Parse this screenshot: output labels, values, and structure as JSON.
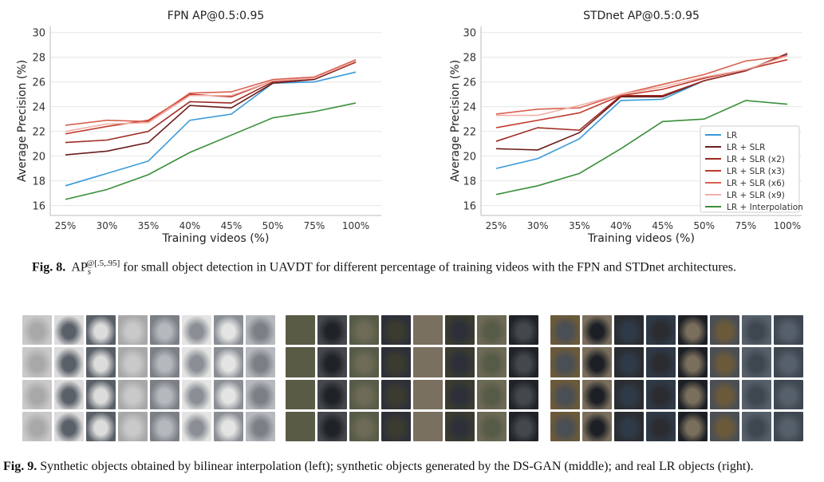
{
  "figure8": {
    "caption_label": "Fig. 8.",
    "caption_ap": "AP",
    "caption_sub": "s",
    "caption_sup": "@[.5,.95]",
    "caption_text": " for small object detection in UAVDT for different percentage of training videos with the FPN and STDnet architectures."
  },
  "chart_data": [
    {
      "type": "line",
      "title": "FPN AP@0.5:0.95",
      "xlabel": "Training videos (%)",
      "ylabel": "Average Precision (%)",
      "categories": [
        "25%",
        "30%",
        "35%",
        "40%",
        "45%",
        "50%",
        "75%",
        "100%"
      ],
      "yticks": [
        16,
        18,
        20,
        22,
        24,
        26,
        28,
        30
      ],
      "ylim": [
        15.2,
        30.5
      ],
      "grid": true,
      "legend": "none",
      "series": [
        {
          "name": "LR",
          "color": "#3a9ad9",
          "values": [
            17.6,
            18.6,
            19.6,
            22.9,
            23.4,
            25.9,
            26.0,
            26.8
          ]
        },
        {
          "name": "LR + SLR",
          "color": "#6b1c1c",
          "values": [
            20.1,
            20.4,
            21.1,
            24.1,
            23.9,
            25.9,
            26.2,
            27.6
          ]
        },
        {
          "name": "LR + SLR (x2)",
          "color": "#9e2a22",
          "values": [
            21.1,
            21.3,
            22.0,
            24.4,
            24.3,
            26.0,
            26.3,
            27.6
          ]
        },
        {
          "name": "LR + SLR (x3)",
          "color": "#c0392b",
          "values": [
            21.8,
            22.4,
            22.9,
            25.0,
            24.8,
            26.1,
            26.3,
            27.7
          ]
        },
        {
          "name": "LR + SLR (x6)",
          "color": "#d9604f",
          "values": [
            22.5,
            22.9,
            22.8,
            25.1,
            25.2,
            26.2,
            26.4,
            27.8
          ]
        },
        {
          "name": "LR + SLR (x9)",
          "color": "#f0b0a8",
          "values": [
            22.0,
            22.6,
            22.7,
            24.9,
            24.9,
            26.1,
            26.3,
            27.7
          ]
        },
        {
          "name": "LR + Interpolation",
          "color": "#3a8f3a",
          "values": [
            16.5,
            17.3,
            18.5,
            20.3,
            21.7,
            23.1,
            23.6,
            24.3
          ]
        }
      ]
    },
    {
      "type": "line",
      "title": "STDnet AP@0.5:0.95",
      "xlabel": "Training videos (%)",
      "ylabel": "Average Precision (%)",
      "categories": [
        "25%",
        "30%",
        "35%",
        "40%",
        "45%",
        "50%",
        "75%",
        "100%"
      ],
      "yticks": [
        16,
        18,
        20,
        22,
        24,
        26,
        28,
        30
      ],
      "ylim": [
        15.2,
        30.5
      ],
      "grid": true,
      "legend": "bottom-right",
      "series": [
        {
          "name": "LR",
          "color": "#3a9ad9",
          "values": [
            19.0,
            19.8,
            21.4,
            24.5,
            24.6,
            26.1,
            26.9,
            28.2
          ]
        },
        {
          "name": "LR + SLR",
          "color": "#6b1c1c",
          "values": [
            20.6,
            20.5,
            21.9,
            24.8,
            24.8,
            26.1,
            26.9,
            28.3
          ]
        },
        {
          "name": "LR + SLR (x2)",
          "color": "#9e2a22",
          "values": [
            21.2,
            22.3,
            22.1,
            24.9,
            24.9,
            26.1,
            26.9,
            28.3
          ]
        },
        {
          "name": "LR + SLR (x3)",
          "color": "#c0392b",
          "values": [
            22.3,
            22.9,
            23.5,
            24.9,
            25.4,
            26.3,
            27.0,
            27.8
          ]
        },
        {
          "name": "LR + SLR (x6)",
          "color": "#d9604f",
          "values": [
            23.4,
            23.8,
            23.9,
            25.0,
            25.8,
            26.6,
            27.7,
            28.1
          ]
        },
        {
          "name": "LR + SLR (x9)",
          "color": "#f0b0a8",
          "values": [
            23.3,
            23.3,
            24.1,
            25.0,
            25.6,
            26.4,
            27.0,
            28.1
          ]
        },
        {
          "name": "LR + Interpolation",
          "color": "#3a8f3a",
          "values": [
            16.9,
            17.6,
            18.6,
            20.6,
            22.8,
            23.0,
            24.5,
            24.2
          ]
        }
      ]
    }
  ],
  "figure9": {
    "caption_label": "Fig. 9.",
    "caption_text": " Synthetic objects obtained by bilinear interpolation (left); synthetic objects generated by the DS-GAN (middle); and real LR objects (right).",
    "grids": [
      {
        "name": "bilinear-interpolation-objects",
        "tone": "light-gray"
      },
      {
        "name": "ds-gan-objects",
        "tone": "dark"
      },
      {
        "name": "real-lr-objects",
        "tone": "dark"
      }
    ]
  }
}
